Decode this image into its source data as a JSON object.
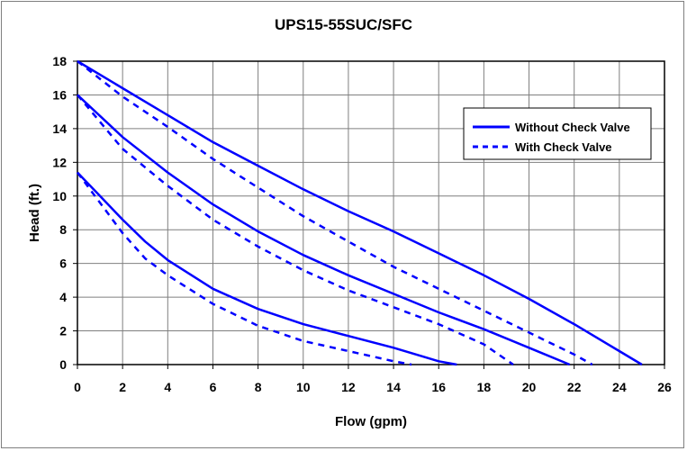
{
  "chart_data": {
    "type": "line",
    "title": "UPS15-55SUC/SFC",
    "xlabel": "Flow (gpm)",
    "ylabel": "Head (ft.)",
    "xlim": [
      0,
      26
    ],
    "ylim": [
      0,
      18
    ],
    "xticks": [
      0,
      2,
      4,
      6,
      8,
      10,
      12,
      14,
      16,
      18,
      20,
      22,
      24,
      26
    ],
    "yticks": [
      0,
      2,
      4,
      6,
      8,
      10,
      12,
      14,
      16,
      18
    ],
    "grid": true,
    "legend_position": "top-right",
    "line_color": "#0000ff",
    "legend": [
      {
        "label": "Without Check Valve",
        "style": "solid"
      },
      {
        "label": "With Check Valve",
        "style": "dashed"
      }
    ],
    "series": [
      {
        "style": "solid",
        "x": [
          0,
          2,
          4,
          6,
          8,
          10,
          12,
          14,
          16,
          18,
          20,
          22,
          24,
          25
        ],
        "y": [
          18.0,
          16.4,
          14.8,
          13.2,
          11.8,
          10.4,
          9.1,
          7.9,
          6.6,
          5.3,
          3.9,
          2.4,
          0.8,
          0
        ]
      },
      {
        "style": "dashed",
        "x": [
          0,
          2,
          4,
          6,
          8,
          10,
          12,
          14,
          16,
          18,
          20,
          22,
          22.8
        ],
        "y": [
          18.0,
          15.9,
          14.1,
          12.2,
          10.5,
          8.8,
          7.3,
          5.8,
          4.5,
          3.2,
          1.9,
          0.6,
          0
        ]
      },
      {
        "style": "solid",
        "x": [
          0,
          2,
          4,
          6,
          8,
          10,
          12,
          14,
          16,
          18,
          20,
          21.8
        ],
        "y": [
          16.0,
          13.5,
          11.4,
          9.5,
          7.9,
          6.5,
          5.3,
          4.2,
          3.1,
          2.1,
          1.0,
          0
        ]
      },
      {
        "style": "dashed",
        "x": [
          0,
          2,
          4,
          6,
          8,
          10,
          12,
          14,
          16,
          18,
          19.3
        ],
        "y": [
          16.0,
          12.8,
          10.6,
          8.6,
          7.0,
          5.6,
          4.4,
          3.4,
          2.4,
          1.2,
          0
        ]
      },
      {
        "style": "solid",
        "x": [
          0,
          1,
          2,
          3,
          4,
          6,
          8,
          10,
          12,
          14,
          15,
          16,
          16.8
        ],
        "y": [
          11.4,
          10.0,
          8.6,
          7.3,
          6.2,
          4.5,
          3.3,
          2.4,
          1.7,
          1.0,
          0.6,
          0.2,
          0
        ]
      },
      {
        "style": "dashed",
        "x": [
          0,
          1,
          2,
          3,
          4,
          6,
          8,
          10,
          12,
          13,
          14,
          14.8
        ],
        "y": [
          11.4,
          9.6,
          7.8,
          6.3,
          5.3,
          3.6,
          2.3,
          1.4,
          0.8,
          0.5,
          0.2,
          0
        ]
      }
    ]
  }
}
